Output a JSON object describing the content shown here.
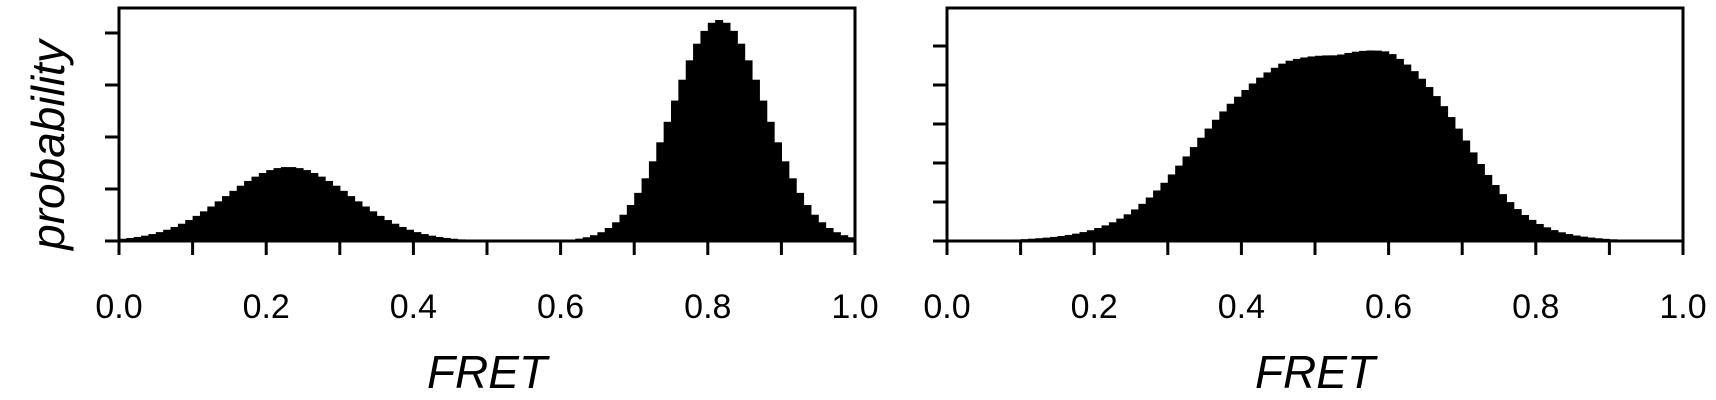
{
  "chart_data": [
    {
      "type": "bar",
      "panel": "left",
      "xlabel": "FRET",
      "ylabel": "probability",
      "xlim": [
        0.0,
        1.0
      ],
      "x_ticks": [
        "0.0",
        "0.2",
        "0.4",
        "0.6",
        "0.8",
        "1.0"
      ],
      "grid": false,
      "bin_width": 0.01,
      "components": [
        {
          "mean": 0.23,
          "sd": 0.085,
          "peak": 0.335
        },
        {
          "mean": 0.815,
          "sd": 0.063,
          "peak": 1.0
        }
      ],
      "peak_heights_relative": [
        0.33,
        1.0
      ]
    },
    {
      "type": "bar",
      "panel": "right",
      "xlabel": "FRET",
      "ylabel": "",
      "xlim": [
        0.0,
        1.0
      ],
      "x_ticks": [
        "0.0",
        "0.2",
        "0.4",
        "0.6",
        "0.8",
        "1.0"
      ],
      "grid": false,
      "bin_width": 0.01,
      "shape": {
        "rise_center": 0.335,
        "rise_width": 0.05,
        "fall_center": 0.705,
        "fall_width": 0.042,
        "plateau_points": [
          [
            0.4,
            0.85
          ],
          [
            0.46,
            0.88
          ],
          [
            0.53,
            0.87
          ],
          [
            0.6,
            0.93
          ],
          [
            0.65,
            0.91
          ]
        ]
      },
      "peak_heights_relative": [
        0.87,
        0.91
      ]
    }
  ]
}
